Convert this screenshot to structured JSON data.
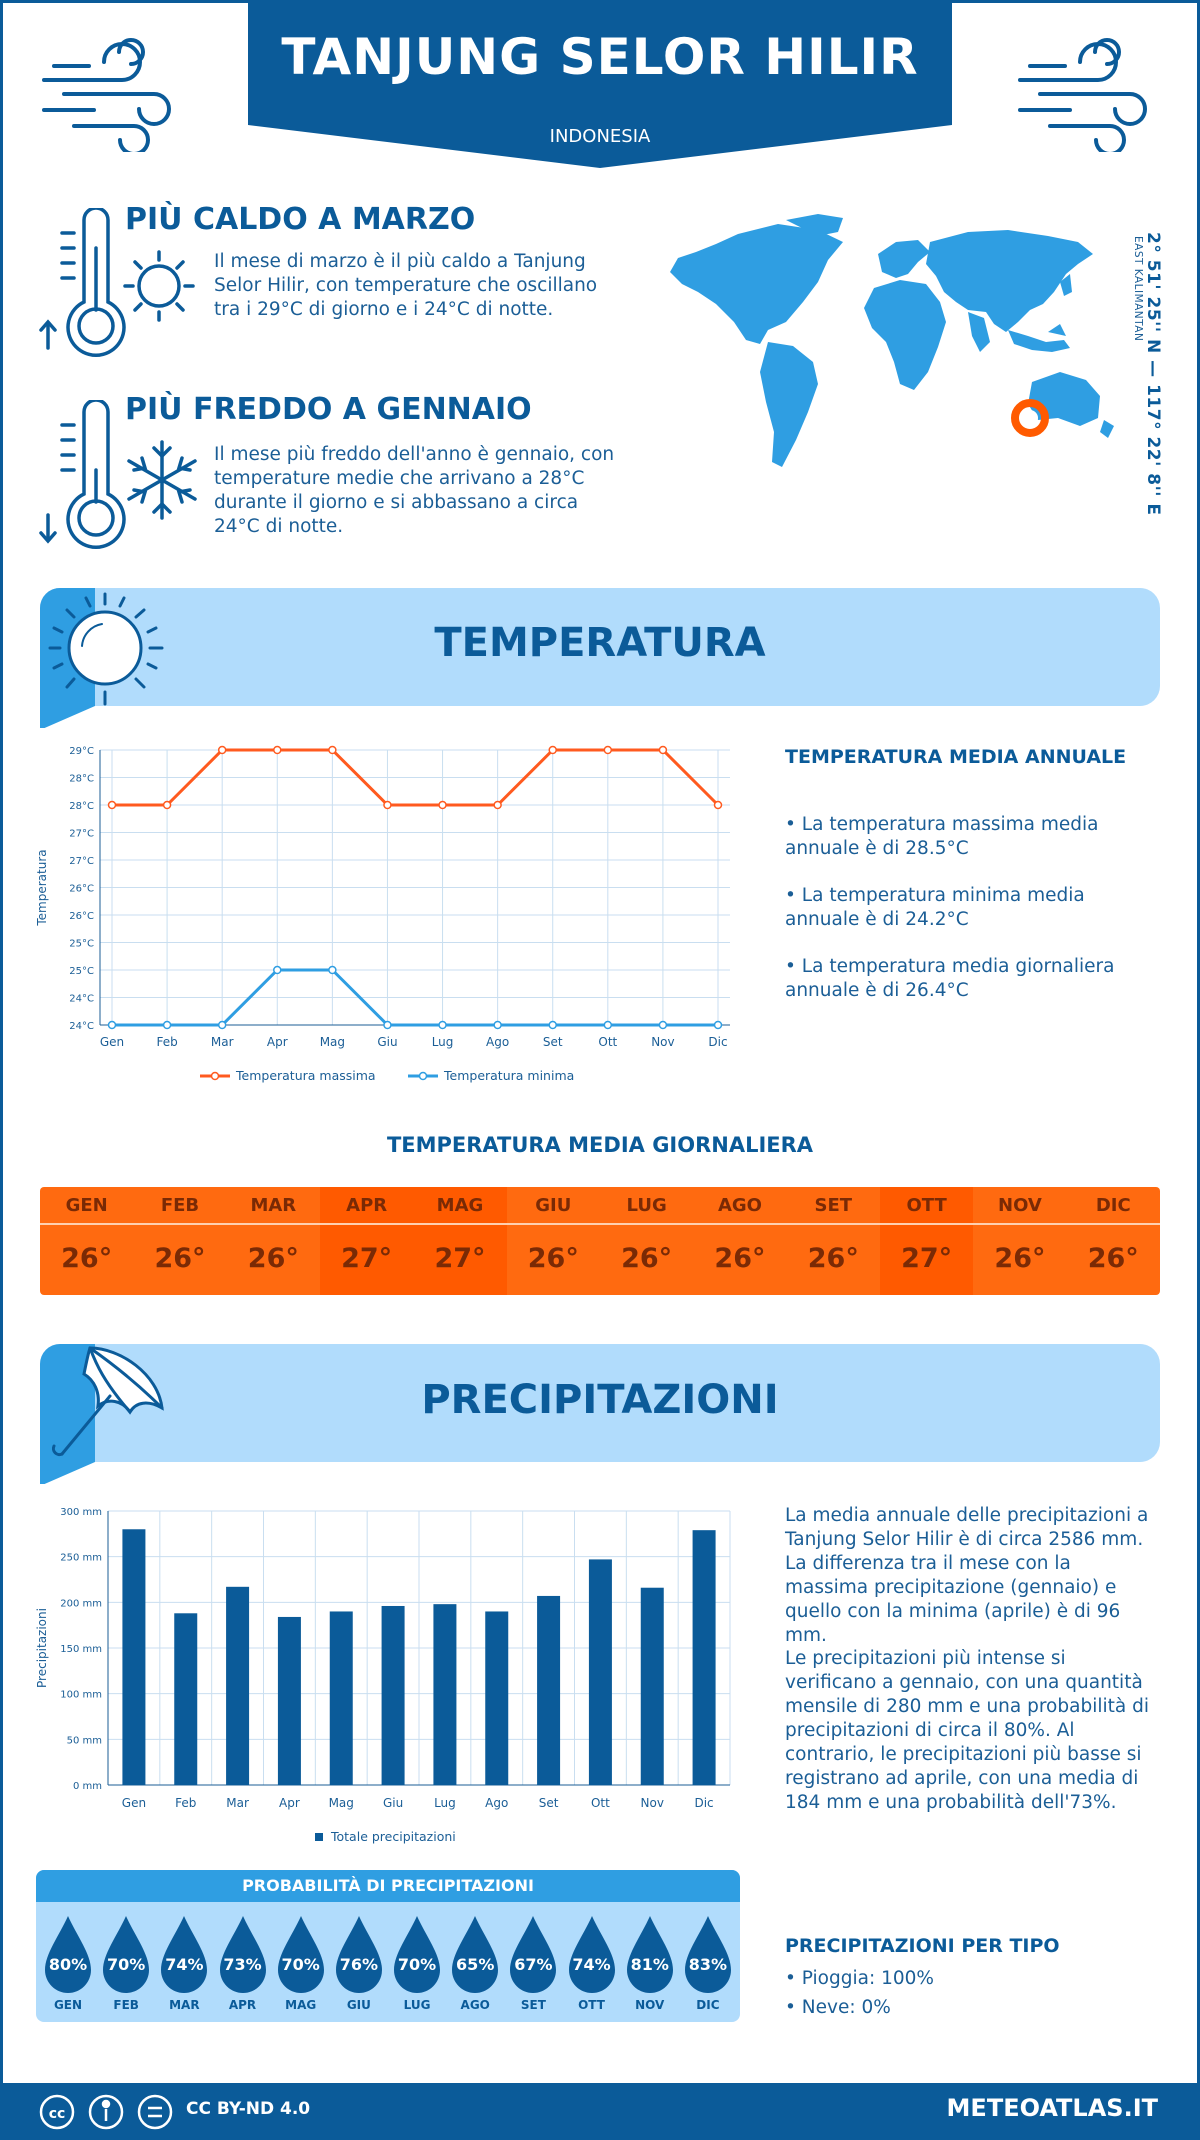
{
  "header": {
    "title": "TANJUNG SELOR HILIR",
    "country": "INDONESIA",
    "coordinates": "2° 51' 25'' N — 117° 22' 8'' E",
    "region": "EAST KALIMANTAN"
  },
  "hottest": {
    "title": "PIÙ CALDO A MARZO",
    "text": "Il mese di marzo è il più caldo a Tanjung Selor Hilir, con temperature che oscillano tra i 29°C di giorno e i 24°C di notte."
  },
  "coldest": {
    "title": "PIÙ FREDDO A GENNAIO",
    "text": "Il mese più freddo dell'anno è gennaio, con temperature medie che arrivano a 28°C durante il giorno e si abbassano a circa 24°C di notte."
  },
  "temperature_section": {
    "title": "TEMPERATURA",
    "annual_title": "TEMPERATURA MEDIA ANNUALE",
    "bullet_max": "• La temperatura massima media annuale è di 28.5°C",
    "bullet_min": "• La temperatura minima media annuale è di 24.2°C",
    "bullet_avg": "• La temperatura media giornaliera annuale è di 26.4°C",
    "legend_max": "Temperatura massima",
    "legend_min": "Temperatura minima"
  },
  "daily": {
    "title": "TEMPERATURA MEDIA GIORNALIERA",
    "months": [
      "GEN",
      "FEB",
      "MAR",
      "APR",
      "MAG",
      "GIU",
      "LUG",
      "AGO",
      "SET",
      "OTT",
      "NOV",
      "DIC"
    ],
    "values": [
      "26°",
      "26°",
      "26°",
      "27°",
      "27°",
      "26°",
      "26°",
      "26°",
      "26°",
      "27°",
      "26°",
      "26°"
    ],
    "colors": [
      "#ff6a10",
      "#ff6a10",
      "#ff6a10",
      "#ff5a00",
      "#ff5a00",
      "#ff6a10",
      "#ff6a10",
      "#ff6a10",
      "#ff6a10",
      "#ff5a00",
      "#ff6a10",
      "#ff6a10"
    ]
  },
  "precip_section": {
    "title": "PRECIPITAZIONI",
    "text1": "La media annuale delle precipitazioni a Tanjung Selor Hilir è di circa 2586 mm. La differenza tra il mese con la massima precipitazione (gennaio) e quello con la minima (aprile) è di 96 mm.",
    "text2": "Le precipitazioni più intense si verificano a gennaio, con una quantità mensile di 280 mm e una probabilità di precipitazioni di circa il 80%. Al contrario, le precipitazioni più basse si registrano ad aprile, con una media di 184 mm e una probabilità dell'73%.",
    "legend": "Totale precipitazioni",
    "type_title": "PRECIPITAZIONI PER TIPO",
    "rain": "• Pioggia: 100%",
    "snow": "• Neve: 0%"
  },
  "probability": {
    "title": "PROBABILITÀ DI PRECIPITAZIONI",
    "months": [
      "GEN",
      "FEB",
      "MAR",
      "APR",
      "MAG",
      "GIU",
      "LUG",
      "AGO",
      "SET",
      "OTT",
      "NOV",
      "DIC"
    ],
    "values": [
      "80%",
      "70%",
      "74%",
      "73%",
      "70%",
      "76%",
      "70%",
      "65%",
      "67%",
      "74%",
      "81%",
      "83%"
    ]
  },
  "footer": {
    "license": "CC BY-ND 4.0",
    "brand": "METEOATLAS.IT"
  },
  "colors": {
    "primary": "#0b5b99",
    "light": "#b1dcfc",
    "accent_blue": "#2f9ee2",
    "max_line": "#ff5a1f",
    "min_line": "#2f9ee2",
    "bar": "#0b5b99"
  },
  "chart_data": [
    {
      "type": "line",
      "ylabel": "Temperatura",
      "categories": [
        "Gen",
        "Feb",
        "Mar",
        "Apr",
        "Mag",
        "Giu",
        "Lug",
        "Ago",
        "Set",
        "Ott",
        "Nov",
        "Dic"
      ],
      "y_tick_labels": [
        "24°C",
        "24°C",
        "25°C",
        "25°C",
        "26°C",
        "26°C",
        "27°C",
        "27°C",
        "28°C",
        "28°C",
        "29°C"
      ],
      "ylim": [
        24,
        29
      ],
      "grid": true,
      "legend": "bottom",
      "series": [
        {
          "name": "Temperatura massima",
          "values": [
            28,
            28,
            29,
            29,
            29,
            28,
            28,
            28,
            29,
            29,
            29,
            28
          ]
        },
        {
          "name": "Temperatura minima",
          "values": [
            24,
            24,
            24,
            25,
            25,
            24,
            24,
            24,
            24,
            24,
            24,
            24
          ]
        }
      ]
    },
    {
      "type": "bar",
      "ylabel": "Precipitazioni",
      "categories": [
        "Gen",
        "Feb",
        "Mar",
        "Apr",
        "Mag",
        "Giu",
        "Lug",
        "Ago",
        "Set",
        "Ott",
        "Nov",
        "Dic"
      ],
      "y_tick_labels": [
        "0 mm",
        "50 mm",
        "100 mm",
        "150 mm",
        "200 mm",
        "250 mm",
        "300 mm"
      ],
      "ylim": [
        0,
        300
      ],
      "grid": true,
      "legend": "bottom",
      "series": [
        {
          "name": "Totale precipitazioni",
          "values": [
            280,
            188,
            217,
            184,
            190,
            196,
            198,
            190,
            207,
            247,
            216,
            279
          ]
        }
      ]
    }
  ]
}
